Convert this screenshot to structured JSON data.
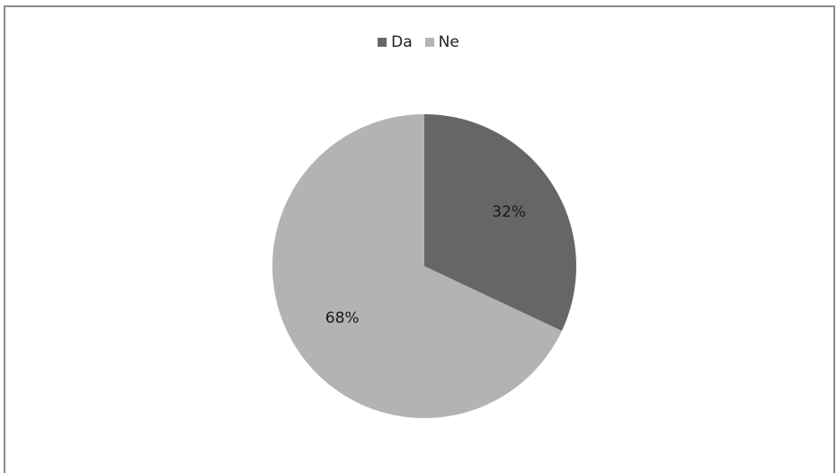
{
  "chart_data": {
    "type": "pie",
    "categories": [
      "Da",
      "Ne"
    ],
    "values": [
      32,
      68
    ],
    "labels": [
      "32%",
      "68%"
    ],
    "colors": [
      "#666666",
      "#b3b3b3"
    ],
    "legend_position": "top",
    "title": ""
  }
}
